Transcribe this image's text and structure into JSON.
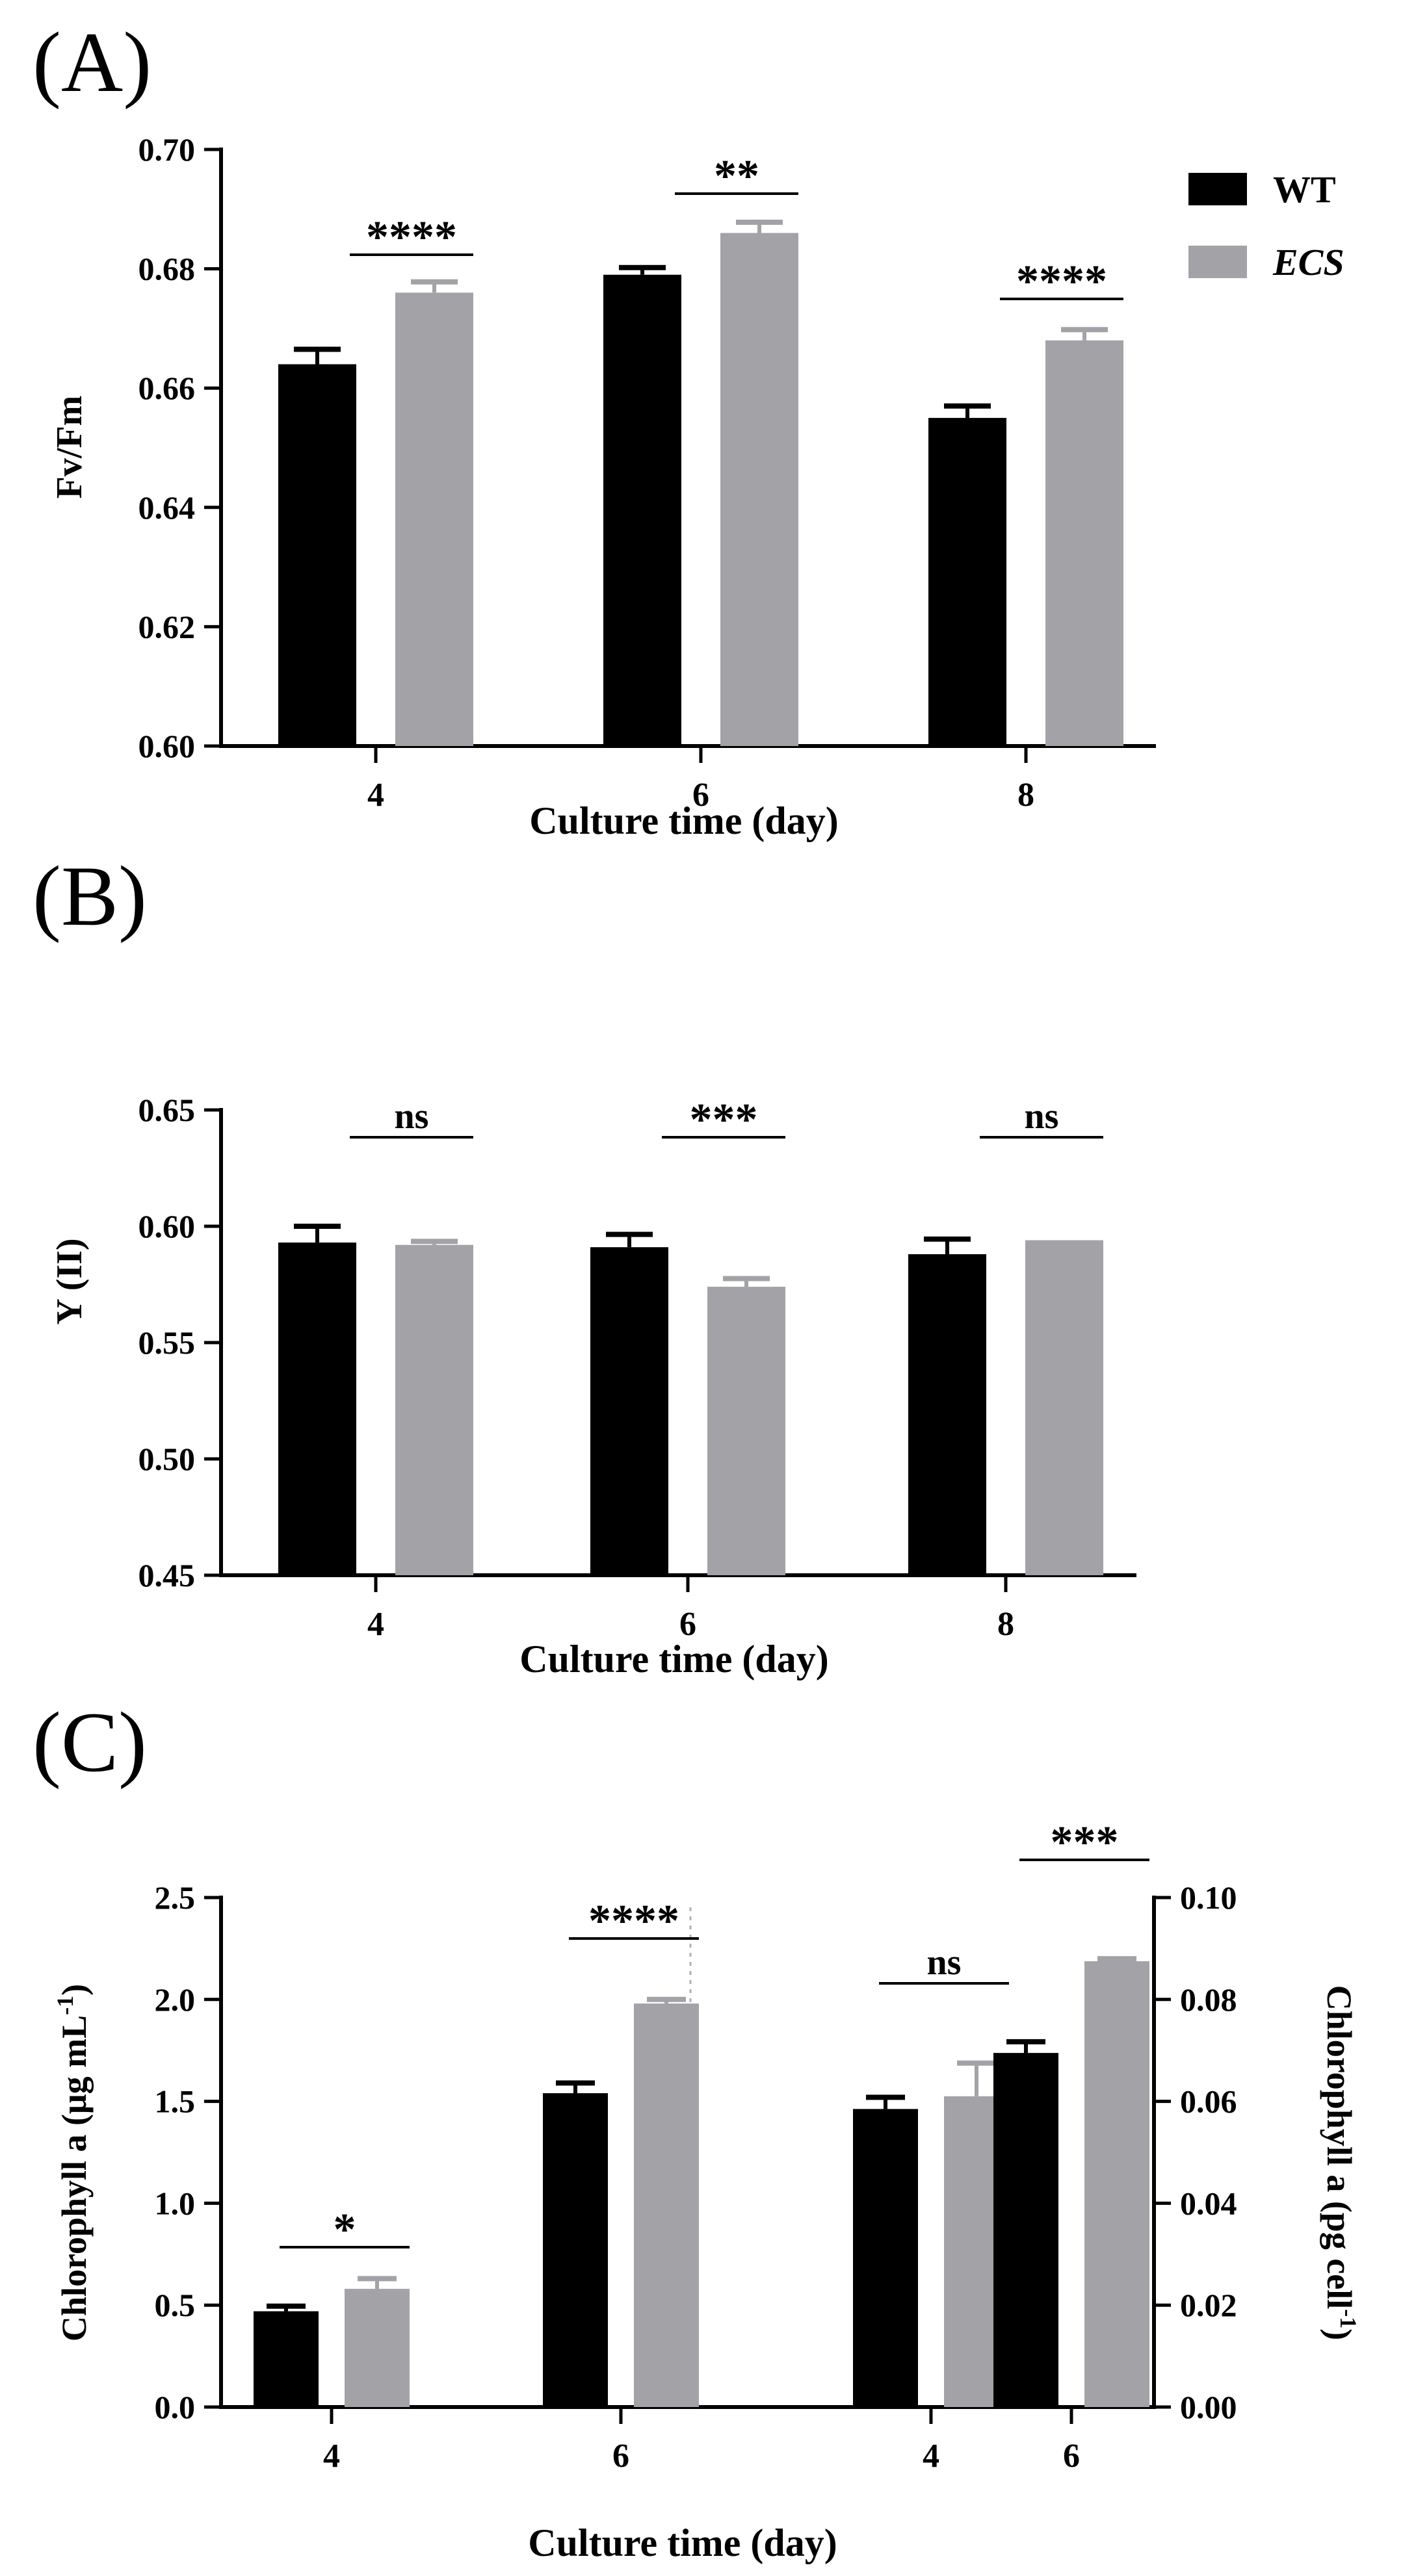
{
  "legend": {
    "position": "top-right",
    "items": [
      {
        "label": "WT",
        "color": "#000000",
        "italic": false
      },
      {
        "label": "ECS",
        "color": "#a3a3a7",
        "italic": true
      }
    ]
  },
  "colors": {
    "wt": "#000000",
    "ecs": "#a3a3a7",
    "axis": "#000000",
    "divider": "#b0b0b0"
  },
  "chart_data": [
    {
      "id": "A",
      "panel_label": "(A)",
      "type": "bar",
      "title": "",
      "xlabel": "Culture time (day)",
      "ylabel": "Fv/Fm",
      "ylim": [
        0.6,
        0.7
      ],
      "yticks": [
        0.6,
        0.62,
        0.64,
        0.66,
        0.68,
        0.7
      ],
      "ytick_labels": [
        "0.60",
        "0.62",
        "0.64",
        "0.66",
        "0.68",
        "0.70"
      ],
      "categories": [
        "4",
        "6",
        "8"
      ],
      "series": [
        {
          "name": "WT",
          "values": [
            0.664,
            0.679,
            0.655
          ],
          "errors": [
            0.0025,
            0.0012,
            0.002
          ]
        },
        {
          "name": "ECS",
          "values": [
            0.676,
            0.686,
            0.668
          ],
          "errors": [
            0.0018,
            0.0018,
            0.0018
          ]
        }
      ],
      "significance": [
        "****",
        "**",
        "****"
      ]
    },
    {
      "id": "B",
      "panel_label": "(B)",
      "type": "bar",
      "title": "",
      "xlabel": "Culture time (day)",
      "ylabel": "Y (II)",
      "ylim": [
        0.45,
        0.65
      ],
      "yticks": [
        0.45,
        0.5,
        0.55,
        0.6,
        0.65
      ],
      "ytick_labels": [
        "0.45",
        "0.50",
        "0.55",
        "0.60",
        "0.65"
      ],
      "categories": [
        "4",
        "6",
        "8"
      ],
      "series": [
        {
          "name": "WT",
          "values": [
            0.593,
            0.591,
            0.588
          ],
          "errors": [
            0.007,
            0.0055,
            0.0065
          ]
        },
        {
          "name": "ECS",
          "values": [
            0.592,
            0.574,
            0.594
          ],
          "errors": [
            0.0015,
            0.0035,
            0.0
          ]
        }
      ],
      "significance": [
        "ns",
        "***",
        "ns"
      ]
    },
    {
      "id": "C",
      "panel_label": "(C)",
      "type": "bar",
      "title": "",
      "xlabel": "Culture time (day)",
      "ylabel": "Chlorophyll a (μg mL",
      "ylabel_sup": "-1",
      "ylabel_end": ")",
      "ylabel_right": "Chlorophyll a (pg cell",
      "ylabel_right_sup": "-1",
      "ylabel_right_end": ")",
      "ylim": [
        0.0,
        2.5
      ],
      "yticks": [
        0.0,
        0.5,
        1.0,
        1.5,
        2.0,
        2.5
      ],
      "ytick_labels": [
        "0.0",
        "0.5",
        "1.0",
        "1.5",
        "2.0",
        "2.5"
      ],
      "ylim_right": [
        0.0,
        0.1
      ],
      "yticks_right": [
        0.0,
        0.02,
        0.04,
        0.06,
        0.08,
        0.1
      ],
      "ytick_labels_right": [
        "0.00",
        "0.02",
        "0.04",
        "0.06",
        "0.08",
        "0.10"
      ],
      "categories": [
        "4",
        "6",
        "4",
        "6"
      ],
      "groups": [
        {
          "axis": "left",
          "category": "4",
          "wt": 0.47,
          "wt_err": 0.025,
          "ecs": 0.58,
          "ecs_err": 0.05,
          "sig": "*"
        },
        {
          "axis": "left",
          "category": "6",
          "wt": 1.54,
          "wt_err": 0.05,
          "ecs": 1.98,
          "ecs_err": 0.02,
          "sig": "****"
        },
        {
          "axis": "right",
          "category": "4",
          "wt": 0.0585,
          "wt_err": 0.0023,
          "ecs": 0.061,
          "ecs_err": 0.0065,
          "sig": "ns"
        },
        {
          "axis": "right",
          "category": "6",
          "wt": 0.0695,
          "wt_err": 0.0022,
          "ecs": 0.0875,
          "ecs_err": 0.0005,
          "sig": "***"
        }
      ]
    }
  ]
}
